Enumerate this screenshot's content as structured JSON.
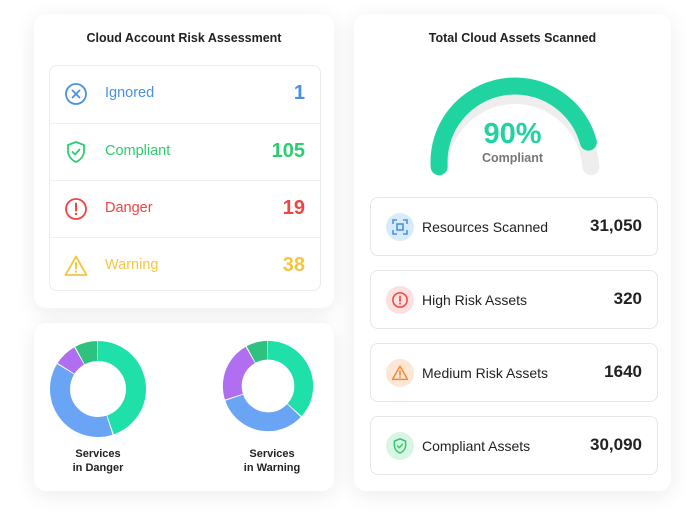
{
  "risk_assessment": {
    "title": "Cloud Account Risk Assessment",
    "items": [
      {
        "label": "Ignored",
        "value": "1",
        "color": "#4a90e2",
        "icon": "x-circle-icon"
      },
      {
        "label": "Compliant",
        "value": "105",
        "color": "#2ecc71",
        "icon": "shield-check-icon"
      },
      {
        "label": "Danger",
        "value": "19",
        "color": "#ef4444",
        "icon": "exclamation-circle-icon"
      },
      {
        "label": "Warning",
        "value": "38",
        "color": "#f5c542",
        "icon": "warning-triangle-icon"
      }
    ]
  },
  "services": {
    "danger": {
      "label_line1": "Services",
      "label_line2": "in Danger",
      "segments": [
        {
          "color": "#1fe0a8",
          "fraction": 0.45
        },
        {
          "color": "#6aa4f4",
          "fraction": 0.39
        },
        {
          "color": "#b06ef0",
          "fraction": 0.08
        },
        {
          "color": "#2ec27e",
          "fraction": 0.08
        }
      ]
    },
    "warning": {
      "label_line1": "Services",
      "label_line2": "in Warning",
      "segments": [
        {
          "color": "#1fe0a8",
          "fraction": 0.37
        },
        {
          "color": "#6aa4f4",
          "fraction": 0.33
        },
        {
          "color": "#b06ef0",
          "fraction": 0.22
        },
        {
          "color": "#2ec27e",
          "fraction": 0.08
        }
      ]
    }
  },
  "assets": {
    "title": "Total Cloud Assets Scanned",
    "gauge": {
      "percent_text": "90%",
      "fraction": 0.9,
      "label": "Compliant",
      "color": "#1fd4a1",
      "track_color": "#eeeeee"
    },
    "items": [
      {
        "label": "Resources Scanned",
        "value": "31,050",
        "icon": "scan-icon",
        "color": "#4a90e2",
        "bg": "#d8ebfb"
      },
      {
        "label": "High Risk Assets",
        "value": "320",
        "icon": "exclamation-circle-icon",
        "color": "#ef4444",
        "bg": "#fde0e0"
      },
      {
        "label": "Medium Risk Assets",
        "value": "1640",
        "icon": "warning-triangle-icon",
        "color": "#f08c3a",
        "bg": "#fde6d4"
      },
      {
        "label": "Compliant Assets",
        "value": "30,090",
        "icon": "shield-check-icon",
        "color": "#2ecc71",
        "bg": "#daf5e4"
      }
    ]
  }
}
